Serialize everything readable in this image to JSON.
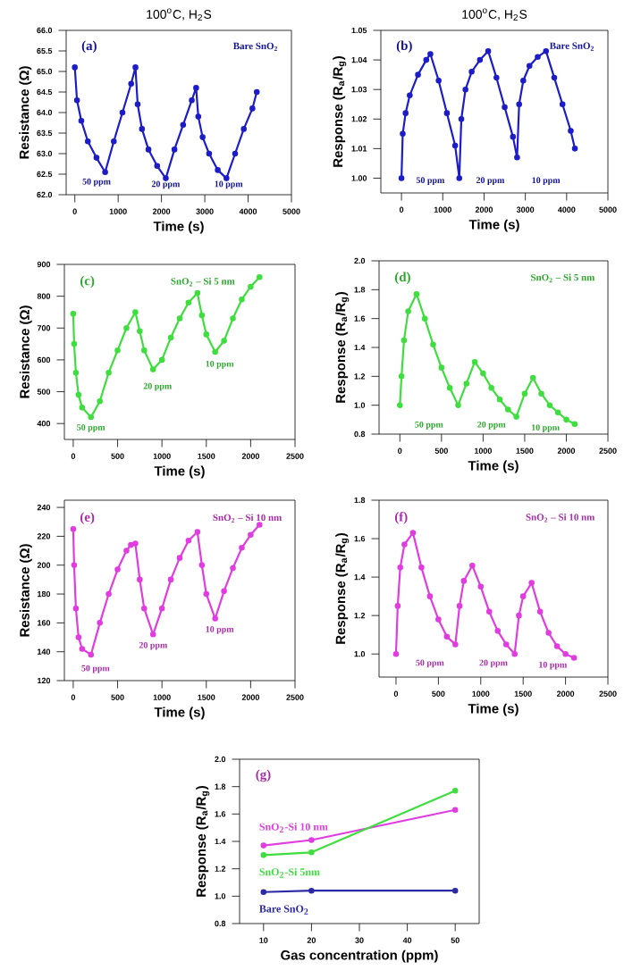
{
  "chart_data": [
    {
      "type": "line",
      "title": "100$^{o}$C, H$_{2}$S",
      "xlabel": "Time (s)",
      "ylabel": "Resistance (Ω)",
      "marker": "circle",
      "x": [
        0,
        50,
        150,
        300,
        500,
        700,
        900,
        1100,
        1300,
        1400,
        1450,
        1550,
        1700,
        1900,
        2100,
        2300,
        2500,
        2700,
        2800,
        2850,
        2950,
        3100,
        3300,
        3500,
        3700,
        3900,
        4100,
        4200
      ],
      "series": [
        {
          "color": "#1c1cc8",
          "values": [
            65.1,
            64.3,
            63.8,
            63.3,
            62.9,
            62.55,
            63.3,
            64.0,
            64.7,
            65.1,
            64.2,
            63.6,
            63.1,
            62.7,
            62.4,
            63.1,
            63.7,
            64.3,
            64.6,
            63.9,
            63.4,
            63.0,
            62.6,
            62.4,
            63.0,
            63.6,
            64.1,
            64.5
          ]
        }
      ],
      "xlim": [
        -200,
        5000
      ],
      "xticks": [
        0,
        1000,
        2000,
        3000,
        4000,
        5000
      ],
      "ylim": [
        62.0,
        66.0
      ],
      "yticks": [
        {
          "value": 62.0,
          "label": "62.0"
        },
        62.5,
        {
          "value": 63.0,
          "label": "63.0"
        },
        63.5,
        {
          "value": 64.0,
          "label": "64.0"
        },
        64.5,
        {
          "value": 65.0,
          "label": "65.0"
        },
        65.5,
        {
          "value": 66.0,
          "label": "66.0"
        }
      ],
      "annotations": [
        "(a)",
        "Bare SnO$_{2}$",
        "50 ppm",
        "20 ppm",
        "10 ppm"
      ]
    },
    {
      "type": "line",
      "title": "100$^{o}$C, H$_{2}$S",
      "xlabel": "Time (s)",
      "ylabel": "Response (R$_{a}$/R$_{g}$)",
      "marker": "circle",
      "x": [
        0,
        30,
        100,
        200,
        400,
        600,
        700,
        900,
        1100,
        1300,
        1400,
        1450,
        1550,
        1700,
        1900,
        2100,
        2300,
        2500,
        2700,
        2800,
        2850,
        2950,
        3100,
        3300,
        3500,
        3700,
        3900,
        4100,
        4200
      ],
      "series": [
        {
          "color": "#1c1cc8",
          "values": [
            1.0,
            1.015,
            1.022,
            1.028,
            1.035,
            1.04,
            1.042,
            1.033,
            1.022,
            1.011,
            1.0,
            1.02,
            1.03,
            1.036,
            1.04,
            1.043,
            1.034,
            1.024,
            1.014,
            1.007,
            1.025,
            1.033,
            1.038,
            1.041,
            1.043,
            1.034,
            1.025,
            1.016,
            1.01
          ]
        }
      ],
      "xlim": [
        -500,
        5000
      ],
      "xticks": [
        0,
        1000,
        2000,
        3000,
        4000,
        5000
      ],
      "ylim": [
        0.995,
        1.05
      ],
      "yticks": [
        {
          "value": 1.0,
          "label": "1.00"
        },
        1.01,
        1.02,
        1.03,
        1.04,
        1.05
      ],
      "annotations": [
        "(b)",
        "Bare SnO$_{2}$",
        "50 ppm",
        "20 ppm",
        "10 ppm"
      ]
    },
    {
      "type": "line",
      "xlabel": "Time (s)",
      "ylabel": "Resistance (Ω)",
      "marker": "circle",
      "x": [
        0,
        10,
        30,
        60,
        100,
        200,
        300,
        400,
        500,
        600,
        700,
        750,
        800,
        900,
        1000,
        1100,
        1200,
        1300,
        1400,
        1450,
        1500,
        1600,
        1700,
        1800,
        1900,
        2000,
        2100
      ],
      "series": [
        {
          "color": "#3ede3e",
          "values": [
            745,
            650,
            560,
            490,
            450,
            420,
            470,
            560,
            630,
            700,
            750,
            690,
            630,
            570,
            600,
            670,
            730,
            780,
            810,
            740,
            680,
            625,
            660,
            730,
            790,
            830,
            860
          ]
        }
      ],
      "xlim": [
        -100,
        2500
      ],
      "xticks": [
        0,
        500,
        1000,
        1500,
        2000,
        2500
      ],
      "ylim": [
        350,
        900
      ],
      "yticks": [
        400,
        500,
        600,
        700,
        800,
        900
      ],
      "annotations": [
        "(c)",
        "SnO$_{2}$ – Si 5 nm",
        "50 ppm",
        "20 ppm",
        "10 ppm"
      ]
    },
    {
      "type": "line",
      "xlabel": "Time (s)",
      "ylabel": "Response (R$_{a}$/R$_{g}$)",
      "marker": "circle",
      "x": [
        0,
        20,
        50,
        100,
        200,
        300,
        400,
        500,
        600,
        700,
        800,
        900,
        1000,
        1100,
        1200,
        1300,
        1400,
        1500,
        1600,
        1700,
        1800,
        1900,
        2000,
        2100
      ],
      "series": [
        {
          "color": "#3ede3e",
          "values": [
            1.0,
            1.2,
            1.45,
            1.65,
            1.77,
            1.6,
            1.42,
            1.26,
            1.12,
            1.0,
            1.15,
            1.3,
            1.22,
            1.12,
            1.04,
            0.97,
            0.92,
            1.08,
            1.19,
            1.08,
            1.0,
            0.95,
            0.9,
            0.87
          ]
        }
      ],
      "xlim": [
        -250,
        2500
      ],
      "xticks": [
        0,
        500,
        1000,
        1500,
        2000,
        2500
      ],
      "ylim": [
        0.8,
        2.0
      ],
      "yticks": [
        0.8,
        {
          "value": 1.0,
          "label": "1.0"
        },
        1.2,
        1.4,
        1.6,
        1.8,
        {
          "value": 2.0,
          "label": "2.0"
        }
      ],
      "annotations": [
        "(d)",
        "SnO$_{2}$ – Si 5 nm",
        "50 ppm",
        "20 ppm",
        "10 ppm"
      ]
    },
    {
      "type": "line",
      "xlabel": "Time (s)",
      "ylabel": "Resistance (Ω)",
      "marker": "circle",
      "x": [
        0,
        10,
        30,
        60,
        100,
        200,
        300,
        400,
        500,
        600,
        650,
        700,
        750,
        800,
        900,
        1000,
        1100,
        1200,
        1300,
        1400,
        1450,
        1500,
        1600,
        1700,
        1800,
        1900,
        2000,
        2100
      ],
      "series": [
        {
          "color": "#e03ce0",
          "values": [
            225,
            200,
            170,
            150,
            142,
            138,
            160,
            180,
            197,
            210,
            214,
            215,
            190,
            170,
            152,
            170,
            190,
            205,
            217,
            223,
            200,
            180,
            163,
            182,
            198,
            212,
            221,
            228
          ]
        }
      ],
      "xlim": [
        -100,
        2500
      ],
      "xticks": [
        0,
        500,
        1000,
        1500,
        2000,
        2500
      ],
      "ylim": [
        120,
        245
      ],
      "yticks": [
        120,
        140,
        160,
        180,
        200,
        220,
        240
      ],
      "annotations": [
        "(e)",
        "SnO$_{2}$ – Si 10 nm",
        "50 ppm",
        "20 ppm",
        "10 ppm"
      ]
    },
    {
      "type": "line",
      "xlabel": "Time (s)",
      "ylabel": "Response (R$_{a}$/R$_{g}$)",
      "marker": "circle",
      "x": [
        0,
        20,
        50,
        100,
        200,
        300,
        400,
        500,
        600,
        700,
        750,
        800,
        900,
        1000,
        1100,
        1200,
        1300,
        1400,
        1450,
        1500,
        1600,
        1700,
        1800,
        1900,
        2000,
        2100
      ],
      "series": [
        {
          "color": "#e03ce0",
          "values": [
            1.0,
            1.25,
            1.45,
            1.57,
            1.63,
            1.45,
            1.3,
            1.18,
            1.09,
            1.05,
            1.25,
            1.38,
            1.46,
            1.35,
            1.22,
            1.12,
            1.05,
            1.0,
            1.2,
            1.3,
            1.37,
            1.22,
            1.11,
            1.04,
            1.0,
            0.98
          ]
        }
      ],
      "xlim": [
        -200,
        2500
      ],
      "xticks": [
        0,
        500,
        1000,
        1500,
        2000,
        2500
      ],
      "ylim": [
        0.88,
        1.8
      ],
      "yticks": [
        {
          "value": 1.0,
          "label": "1.0"
        },
        1.2,
        1.4,
        1.6,
        1.8
      ],
      "annotations": [
        "(f)",
        "SnO$_{2}$ – Si 10 nm",
        "50 ppm",
        "20 ppm",
        "10 ppm"
      ]
    },
    {
      "type": "line",
      "xlabel": "Gas concentration (ppm)",
      "ylabel": "Response (R$_{a}$/R$_{g}$)",
      "marker": "circle",
      "x": [
        10,
        20,
        50
      ],
      "series": [
        {
          "name": "SnO$_{2}$-Si 10 nm",
          "color": "#e03ce0",
          "values": [
            1.37,
            1.41,
            1.63
          ]
        },
        {
          "name": "SnO$_{2}$-Si 5nm",
          "color": "#3ede3e",
          "values": [
            1.3,
            1.32,
            1.77
          ]
        },
        {
          "name": "Bare SnO$_{2}$",
          "color": "#2a2aa8",
          "values": [
            1.03,
            1.04,
            1.04
          ]
        }
      ],
      "xlim": [
        5,
        55
      ],
      "xticks": [
        10,
        20,
        30,
        40,
        50
      ],
      "ylim": [
        0.8,
        2.0
      ],
      "yticks": [
        0.8,
        {
          "value": 1.0,
          "label": "1.0"
        },
        1.2,
        1.4,
        1.6,
        1.8,
        {
          "value": 2.0,
          "label": "2.0"
        }
      ],
      "annotations": [
        "(g)"
      ]
    }
  ]
}
